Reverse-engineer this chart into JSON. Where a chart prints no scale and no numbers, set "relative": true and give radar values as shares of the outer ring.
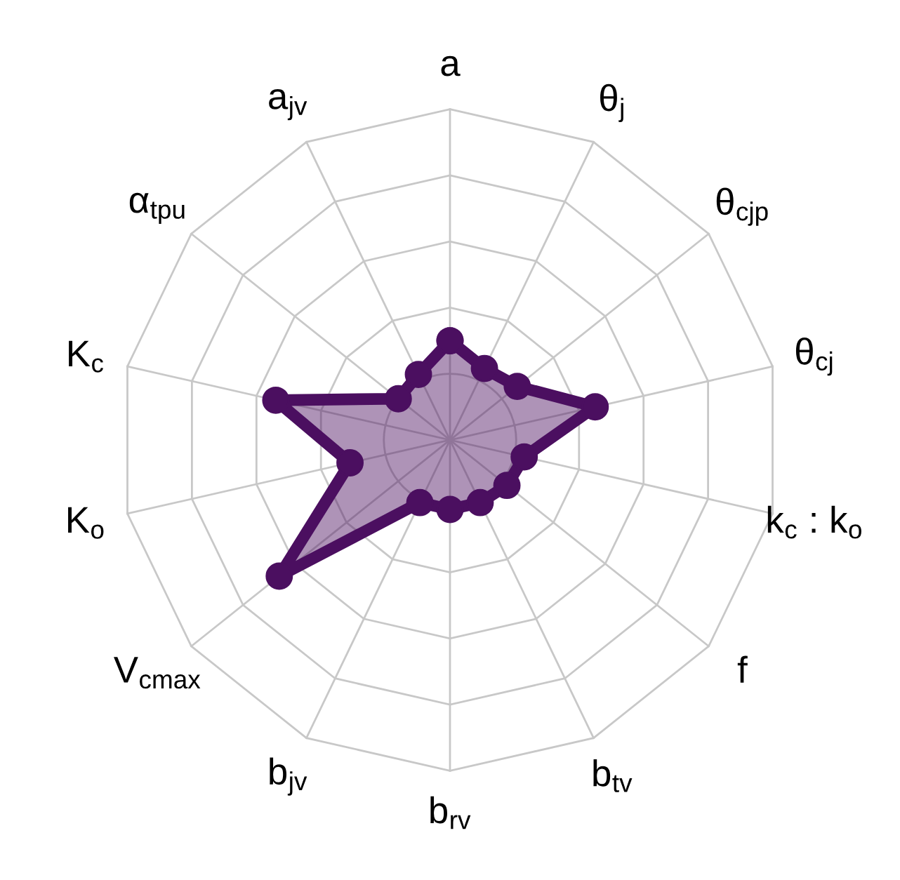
{
  "chart_data": {
    "type": "radar",
    "relative": true,
    "grid": true,
    "marker": "circle",
    "line_style": "solid",
    "categories": [
      "a",
      "θ$_{j}$",
      "θ$_{cjp}$",
      "θ$_{cj}$",
      "k$_{c}$ : k$_{o}$",
      "f",
      "b$_{tv}$",
      "b$_{rv}$",
      "b$_{jv}$",
      "V$_{cmax}$",
      "K$_{o}$",
      "K$_{c}$",
      "α$_{tpu}$",
      "a$_{jv}$"
    ],
    "series": [
      {
        "color": "#4b0f60",
        "values": [
          0.3,
          0.24,
          0.26,
          0.45,
          0.23,
          0.22,
          0.21,
          0.21,
          0.21,
          0.66,
          0.31,
          0.54,
          0.2,
          0.22
        ]
      }
    ]
  }
}
